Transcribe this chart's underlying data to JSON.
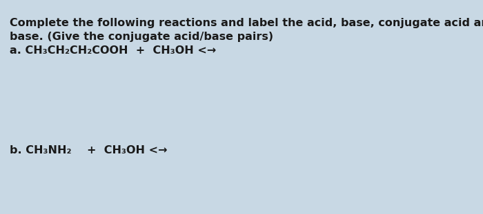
{
  "background_color": "#c8d8e4",
  "text_color": "#1a1a1a",
  "title_line1": "Complete the following reactions and label the acid, base, conjugate acid and",
  "title_line2": "base. (Give the conjugate acid/base pairs)",
  "reaction_a_label": "a.",
  "reaction_a_text": "CH₃CH₂CH₂COOH  +  CH₃OH <→",
  "reaction_b_label": "b.",
  "reaction_b_text": "CH₃NH₂    +  CH₃OH <→",
  "font_size_title": 11.5,
  "font_size_reaction": 11.5,
  "fig_width": 7.0,
  "fig_height": 3.11,
  "dpi": 100
}
